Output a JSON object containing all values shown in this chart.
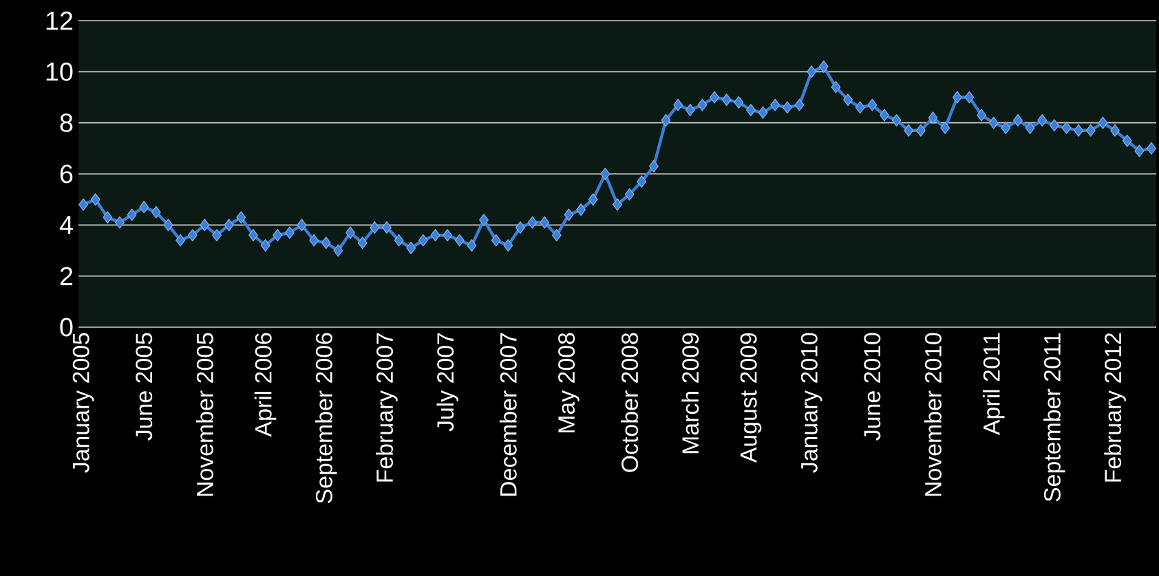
{
  "chart_data": {
    "type": "line",
    "categories": [
      "January 2005",
      null,
      null,
      null,
      null,
      "June 2005",
      null,
      null,
      null,
      null,
      "November 2005",
      null,
      null,
      null,
      null,
      "April 2006",
      null,
      null,
      null,
      null,
      "September 2006",
      null,
      null,
      null,
      null,
      "February 2007",
      null,
      null,
      null,
      null,
      "July 2007",
      null,
      null,
      null,
      null,
      "December 2007",
      null,
      null,
      null,
      null,
      "May 2008",
      null,
      null,
      null,
      null,
      "October 2008",
      null,
      null,
      null,
      null,
      "March 2009",
      null,
      null,
      null,
      null,
      "August 2009",
      null,
      null,
      null,
      null,
      "January 2010",
      null,
      null,
      null,
      null,
      "June 2010",
      null,
      null,
      null,
      null,
      "November 2010",
      null,
      null,
      null,
      null,
      "April 2011",
      null,
      null,
      null,
      null,
      "September 2011",
      null,
      null,
      null,
      null,
      "February 2012",
      null,
      null,
      null
    ],
    "series": [
      {
        "color": "#3a7fd8",
        "values": [
          4.8,
          5.0,
          4.3,
          4.1,
          4.4,
          4.7,
          4.5,
          4.0,
          3.4,
          3.6,
          4.0,
          3.6,
          4.0,
          4.3,
          3.6,
          3.2,
          3.6,
          3.7,
          4.0,
          3.4,
          3.3,
          3.0,
          3.7,
          3.3,
          3.9,
          3.9,
          3.4,
          3.1,
          3.4,
          3.6,
          3.6,
          3.4,
          3.2,
          4.2,
          3.4,
          3.2,
          3.9,
          4.1,
          4.1,
          3.6,
          4.4,
          4.6,
          5.0,
          6.0,
          4.8,
          5.2,
          5.7,
          6.3,
          8.1,
          8.7,
          8.5,
          8.7,
          9.0,
          8.9,
          8.8,
          8.5,
          8.4,
          8.7,
          8.6,
          8.7,
          10.0,
          10.2,
          9.4,
          8.9,
          8.6,
          8.7,
          8.3,
          8.1,
          7.7,
          7.7,
          8.2,
          7.8,
          9.0,
          9.0,
          8.3,
          8.0,
          7.8,
          8.1,
          7.8,
          8.1,
          7.9,
          7.8,
          7.7,
          7.7,
          8.0,
          7.7,
          7.3,
          6.9,
          7.0
        ]
      }
    ],
    "ylim": [
      0,
      12
    ],
    "yticks": [
      0,
      2,
      4,
      6,
      8,
      10,
      12
    ],
    "grid": "y",
    "marker": "diamond",
    "line_style": "solid"
  }
}
